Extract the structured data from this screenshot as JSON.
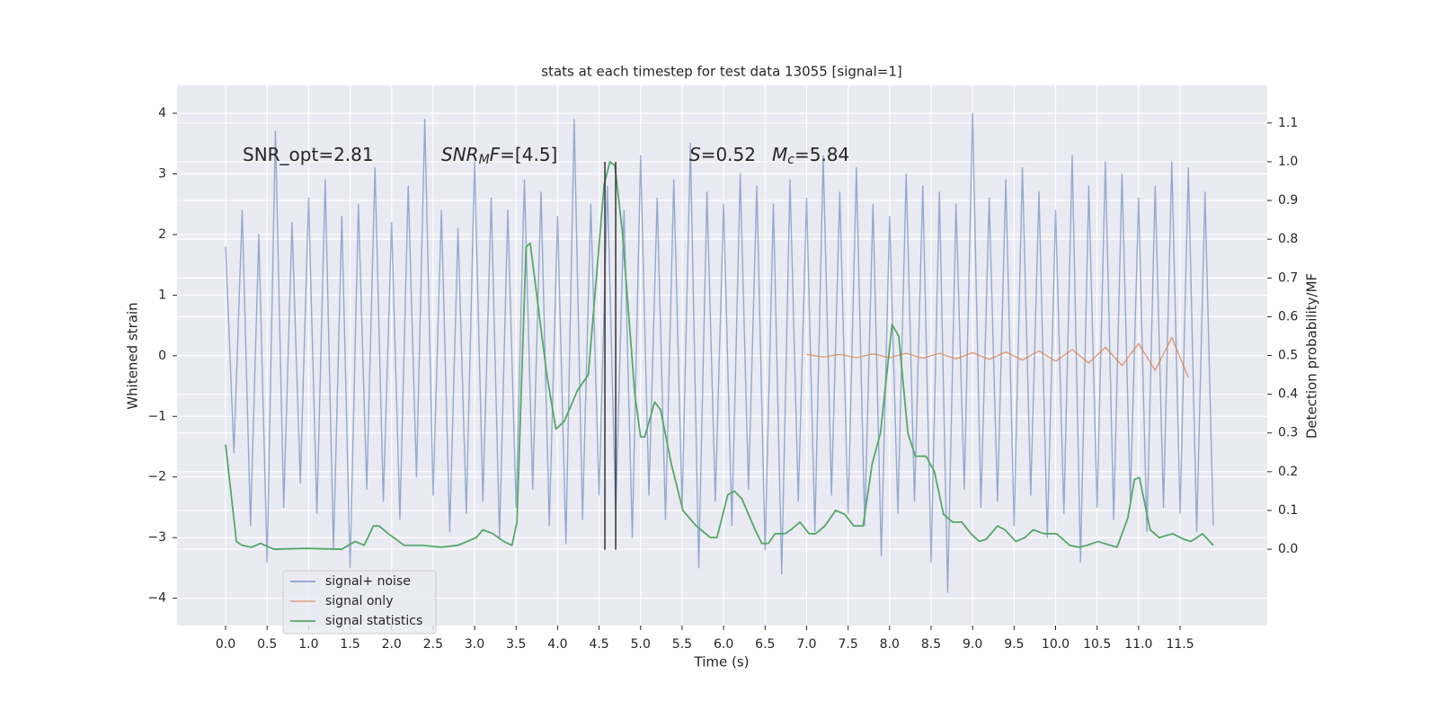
{
  "chart_data": {
    "type": "line",
    "title": "stats at each timestep for test data 13055 [signal=1]",
    "xlabel": "Time (s)",
    "ylabel": "Whitened strain",
    "y2label": "Detection probability/MF",
    "grid": true,
    "legend_loc": "lower left",
    "xlim": [
      -0.585,
      12.55
    ],
    "ylim": [
      -4.45,
      4.46
    ],
    "y2lim": [
      -0.197,
      1.197
    ],
    "xticks": [
      {
        "value": 0,
        "label": "0.0"
      },
      0.5,
      {
        "value": 1,
        "label": "1.0"
      },
      1.5,
      {
        "value": 2,
        "label": "2.0"
      },
      2.5,
      {
        "value": 3,
        "label": "3.0"
      },
      3.5,
      {
        "value": 4,
        "label": "4.0"
      },
      4.5,
      {
        "value": 5,
        "label": "5.0"
      },
      5.5,
      {
        "value": 6,
        "label": "6.0"
      },
      6.5,
      {
        "value": 7,
        "label": "7.0"
      },
      7.5,
      {
        "value": 8,
        "label": "8.0"
      },
      8.5,
      {
        "value": 9,
        "label": "9.0"
      },
      9.5,
      {
        "value": 10,
        "label": "10.0"
      },
      10.5,
      {
        "value": 11,
        "label": "11.0"
      },
      11.5
    ],
    "yticks": [
      {
        "value": -4,
        "label": "−4"
      },
      {
        "value": -3,
        "label": "−3"
      },
      {
        "value": -2,
        "label": "−2"
      },
      {
        "value": -1,
        "label": "−1"
      },
      0,
      1,
      2,
      3,
      4
    ],
    "y2ticks": [
      {
        "value": 0,
        "label": "0.0"
      },
      0.1,
      0.2,
      0.3,
      0.4,
      0.5,
      0.6,
      0.7,
      0.8,
      0.9,
      {
        "value": 1,
        "label": "1.0"
      },
      1.1
    ],
    "annotations": [
      {
        "parts": [
          {
            "text": "SNR_opt=2.81",
            "style": "normal"
          }
        ]
      },
      {
        "parts": [
          {
            "text": "SNR",
            "style": "italic"
          },
          {
            "text": "M",
            "style": "sub-italic"
          },
          {
            "text": "F",
            "style": "italic"
          },
          {
            "text": "=[4.5]",
            "style": "normal"
          }
        ]
      },
      {
        "parts": [
          {
            "text": "S",
            "style": "italic"
          },
          {
            "text": "=0.52",
            "style": "normal"
          }
        ]
      },
      {
        "parts": [
          {
            "text": "M",
            "style": "italic"
          },
          {
            "text": "c",
            "style": "sub-italic"
          },
          {
            "text": "=5.84",
            "style": "normal"
          }
        ]
      }
    ],
    "vlines": {
      "x": [
        4.57,
        4.7
      ],
      "ymin": -3.2,
      "ymax": 3.2,
      "color": "#333333"
    },
    "series": [
      {
        "name": "signal+ noise",
        "color": "#4c72b0",
        "axis": "y",
        "x": [
          0.0,
          0.1,
          0.2,
          0.3,
          0.4,
          0.5,
          0.6,
          0.7,
          0.8,
          0.9,
          1.0,
          1.1,
          1.2,
          1.3,
          1.4,
          1.5,
          1.6,
          1.7,
          1.8,
          1.9,
          2.0,
          2.1,
          2.2,
          2.3,
          2.4,
          2.5,
          2.6,
          2.7,
          2.8,
          2.9,
          3.0,
          3.1,
          3.2,
          3.3,
          3.4,
          3.5,
          3.6,
          3.7,
          3.8,
          3.9,
          4.0,
          4.1,
          4.2,
          4.3,
          4.4,
          4.5,
          4.6,
          4.7,
          4.8,
          4.9,
          5.0,
          5.1,
          5.2,
          5.3,
          5.4,
          5.5,
          5.6,
          5.7,
          5.8,
          5.9,
          6.0,
          6.1,
          6.2,
          6.3,
          6.4,
          6.5,
          6.6,
          6.7,
          6.8,
          6.9,
          7.0,
          7.1,
          7.2,
          7.3,
          7.4,
          7.5,
          7.6,
          7.7,
          7.8,
          7.9,
          8.0,
          8.1,
          8.2,
          8.3,
          8.4,
          8.5,
          8.6,
          8.7,
          8.8,
          8.9,
          9.0,
          9.1,
          9.2,
          9.3,
          9.4,
          9.5,
          9.6,
          9.7,
          9.8,
          9.9,
          10.0,
          10.1,
          10.2,
          10.3,
          10.4,
          10.5,
          10.6,
          10.7,
          10.8,
          10.9,
          11.0,
          11.1,
          11.2,
          11.3,
          11.4,
          11.5,
          11.6,
          11.7,
          11.8,
          11.9
        ],
        "values": [
          1.8,
          -1.6,
          2.4,
          -2.8,
          2.0,
          -3.4,
          3.7,
          -2.5,
          2.2,
          -2.1,
          2.6,
          -2.6,
          2.9,
          -3.2,
          2.3,
          -3.5,
          2.5,
          -2.2,
          3.1,
          -2.4,
          2.2,
          -2.7,
          2.8,
          -2.0,
          3.9,
          -2.3,
          2.4,
          -2.9,
          2.1,
          -2.6,
          3.2,
          -2.4,
          2.6,
          -3.0,
          2.4,
          -2.5,
          2.9,
          -2.2,
          2.7,
          -2.8,
          2.3,
          -3.1,
          3.9,
          -2.7,
          2.5,
          -2.3,
          2.8,
          -2.6,
          2.4,
          -3.0,
          3.3,
          -2.3,
          2.6,
          -2.7,
          2.9,
          -2.5,
          3.5,
          -3.5,
          2.7,
          -2.4,
          2.5,
          -2.8,
          3.0,
          -2.2,
          2.8,
          -3.2,
          2.5,
          -3.6,
          2.9,
          -2.4,
          2.6,
          -2.9,
          3.3,
          -2.3,
          2.7,
          -2.6,
          3.1,
          -2.8,
          2.5,
          -3.3,
          2.3,
          -2.6,
          3.0,
          -2.4,
          2.8,
          -3.4,
          2.7,
          -3.9,
          2.5,
          -2.2,
          4.0,
          -2.5,
          2.6,
          -2.4,
          2.9,
          -2.8,
          3.1,
          -2.3,
          2.7,
          -3.0,
          2.4,
          -2.6,
          3.3,
          -3.4,
          2.8,
          -2.5,
          3.2,
          -2.7,
          3.0,
          -2.4,
          2.6,
          -2.9,
          2.8,
          -2.5,
          3.2,
          -2.6,
          3.1,
          -2.9,
          2.7,
          -2.8
        ]
      },
      {
        "name": "signal only",
        "color": "#dd8452",
        "axis": "y",
        "x": [
          7.0,
          7.2,
          7.4,
          7.6,
          7.8,
          8.0,
          8.2,
          8.4,
          8.6,
          8.8,
          9.0,
          9.2,
          9.4,
          9.6,
          9.8,
          10.0,
          10.2,
          10.4,
          10.6,
          10.8,
          11.0,
          11.2,
          11.4,
          11.6
        ],
        "values": [
          0.02,
          -0.02,
          0.02,
          -0.03,
          0.03,
          -0.03,
          0.04,
          -0.04,
          0.04,
          -0.05,
          0.05,
          -0.06,
          0.06,
          -0.07,
          0.08,
          -0.09,
          0.1,
          -0.12,
          0.14,
          -0.16,
          0.2,
          -0.24,
          0.3,
          -0.36
        ]
      },
      {
        "name": "signal statistics",
        "color": "#55a868",
        "axis": "y2",
        "x": [
          0.0,
          0.13,
          0.2,
          0.31,
          0.42,
          0.58,
          0.96,
          1.4,
          1.56,
          1.67,
          1.78,
          1.85,
          1.96,
          2.15,
          2.37,
          2.59,
          2.8,
          3.02,
          3.1,
          3.22,
          3.35,
          3.45,
          3.51,
          3.62,
          3.67,
          3.87,
          3.98,
          4.08,
          4.24,
          4.37,
          4.56,
          4.63,
          4.69,
          4.78,
          4.93,
          5.0,
          5.05,
          5.17,
          5.24,
          5.37,
          5.51,
          5.67,
          5.84,
          5.92,
          6.05,
          6.13,
          6.22,
          6.38,
          6.46,
          6.54,
          6.62,
          6.74,
          6.81,
          6.92,
          7.03,
          7.11,
          7.22,
          7.35,
          7.46,
          7.57,
          7.68,
          7.79,
          7.89,
          8.03,
          8.11,
          8.22,
          8.31,
          8.44,
          8.54,
          8.65,
          8.76,
          8.87,
          8.98,
          9.08,
          9.16,
          9.3,
          9.39,
          9.52,
          9.63,
          9.73,
          9.86,
          10.01,
          10.17,
          10.28,
          10.38,
          10.51,
          10.66,
          10.74,
          10.87,
          10.95,
          11.01,
          11.14,
          11.25,
          11.41,
          11.55,
          11.63,
          11.77,
          11.9
        ],
        "values": [
          0.27,
          0.02,
          0.01,
          0.005,
          0.015,
          0.0,
          0.002,
          0.0,
          0.02,
          0.01,
          0.06,
          0.06,
          0.04,
          0.01,
          0.01,
          0.005,
          0.01,
          0.03,
          0.05,
          0.04,
          0.02,
          0.01,
          0.07,
          0.78,
          0.79,
          0.45,
          0.31,
          0.33,
          0.41,
          0.45,
          0.94,
          1.0,
          0.99,
          0.82,
          0.4,
          0.29,
          0.29,
          0.38,
          0.36,
          0.22,
          0.1,
          0.06,
          0.03,
          0.03,
          0.14,
          0.15,
          0.13,
          0.05,
          0.015,
          0.015,
          0.04,
          0.04,
          0.05,
          0.07,
          0.04,
          0.04,
          0.06,
          0.1,
          0.09,
          0.06,
          0.06,
          0.22,
          0.3,
          0.58,
          0.55,
          0.3,
          0.24,
          0.24,
          0.2,
          0.09,
          0.07,
          0.07,
          0.04,
          0.02,
          0.025,
          0.06,
          0.05,
          0.02,
          0.03,
          0.05,
          0.04,
          0.04,
          0.01,
          0.005,
          0.01,
          0.02,
          0.01,
          0.005,
          0.08,
          0.18,
          0.185,
          0.05,
          0.03,
          0.04,
          0.025,
          0.02,
          0.04,
          0.01
        ]
      }
    ]
  }
}
